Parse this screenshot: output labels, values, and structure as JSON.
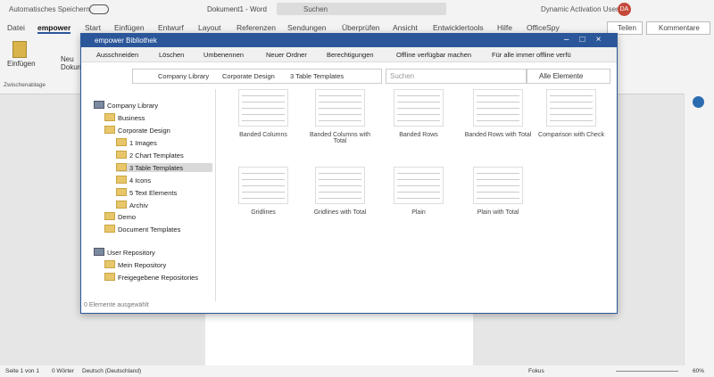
{
  "titlebar": {
    "autosave": "Automatisches Speichern",
    "document": "Dokument1 - Word",
    "search": "Suchen",
    "user": "Dynamic Activation User",
    "initials": "DA"
  },
  "ribbon": {
    "tabs": [
      "Datei",
      "empower",
      "Start",
      "Einfügen",
      "Entwurf",
      "Layout",
      "Referenzen",
      "Sendungen",
      "Überprüfen",
      "Ansicht",
      "Entwicklertools",
      "Hilfe",
      "OfficeSpy"
    ],
    "share": "Teilen",
    "comments": "Kommentare",
    "paste": "Einfügen",
    "new_doc": "Neu Dokum",
    "group": "Zwischenablage"
  },
  "dialog": {
    "title": "empower Bibliothek",
    "toolbar": [
      "Ausschneiden",
      "Löschen",
      "Umbenennen",
      "Neuer Ordner",
      "Berechtigungen",
      "Offline verfügbar machen",
      "Für alle immer offline verfü"
    ],
    "breadcrumb": [
      "Company Library",
      "Corporate Design",
      "3 Table Templates"
    ],
    "search": "Suchen",
    "filter": "Alle Elemente",
    "tree": [
      {
        "label": "Company Library",
        "level": 0
      },
      {
        "label": "Business",
        "level": 1
      },
      {
        "label": "Corporate Design",
        "level": 1
      },
      {
        "label": "1 Images",
        "level": 2
      },
      {
        "label": "2 Chart Templates",
        "level": 2
      },
      {
        "label": "3 Table Templates",
        "level": 2
      },
      {
        "label": "4 Icons",
        "level": 2
      },
      {
        "label": "5 Text Elements",
        "level": 2
      },
      {
        "label": "Archiv",
        "level": 2
      },
      {
        "label": "Demo",
        "level": 1
      },
      {
        "label": "Document Templates",
        "level": 1
      },
      {
        "label": "User Repository",
        "level": 0
      },
      {
        "label": "Mein Repository",
        "level": 1
      },
      {
        "label": "Freigegebene Repositories",
        "level": 1
      }
    ],
    "items": [
      "Banded Columns",
      "Banded Columns with Total",
      "Banded Rows",
      "Banded Rows with Total",
      "Comparison with Check",
      "Gridlines",
      "Gridlines with Total",
      "Plain",
      "Plain with Total"
    ],
    "status": "0 Elemente ausgewählt"
  },
  "statusbar": {
    "page": "Seite 1 von 1",
    "words": "0 Wörter",
    "language": "Deutsch (Deutschland)",
    "focus": "Fokus",
    "zoom": "60%"
  }
}
